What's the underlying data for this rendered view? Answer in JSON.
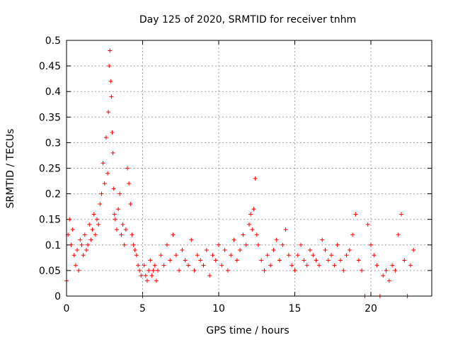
{
  "chart_data": {
    "type": "scatter",
    "title": "Day 125 of 2020, SRMTID for receiver tnhm",
    "xlabel": "GPS time / hours",
    "ylabel": "SRMTID / TECUs",
    "xlim": [
      0,
      24
    ],
    "ylim": [
      0,
      0.5
    ],
    "xticks": [
      0,
      5,
      10,
      15,
      20
    ],
    "xtick_labels": [
      "0",
      "5",
      "10",
      "15",
      "20"
    ],
    "yticks": [
      0,
      0.05,
      0.1,
      0.15,
      0.2,
      0.25,
      0.3,
      0.35,
      0.4,
      0.45,
      0.5
    ],
    "ytick_labels": [
      "0",
      "0.05",
      "0.1",
      "0.15",
      "0.2",
      "0.25",
      "0.3",
      "0.35",
      "0.4",
      "0.45",
      "0.5"
    ],
    "grid": true,
    "marker": "+",
    "color": "#ff0000",
    "series": [
      {
        "name": "SRMTID",
        "x": [
          0.0,
          0.1,
          0.2,
          0.3,
          0.4,
          0.5,
          0.6,
          0.7,
          0.8,
          0.9,
          1.0,
          1.1,
          1.2,
          1.3,
          1.4,
          1.5,
          1.6,
          1.7,
          1.8,
          1.9,
          2.0,
          2.1,
          2.2,
          2.3,
          2.4,
          2.5,
          2.6,
          2.7,
          2.75,
          2.8,
          2.85,
          2.9,
          2.95,
          3.0,
          3.05,
          3.1,
          3.15,
          3.2,
          3.3,
          3.4,
          3.5,
          3.6,
          3.7,
          3.8,
          3.9,
          4.0,
          4.1,
          4.2,
          4.3,
          4.4,
          4.5,
          4.6,
          4.7,
          4.8,
          4.9,
          5.0,
          5.1,
          5.2,
          5.3,
          5.4,
          5.5,
          5.6,
          5.7,
          5.8,
          5.9,
          6.0,
          6.2,
          6.4,
          6.6,
          6.8,
          7.0,
          7.2,
          7.4,
          7.6,
          7.8,
          8.0,
          8.2,
          8.4,
          8.6,
          8.8,
          9.0,
          9.2,
          9.4,
          9.6,
          9.8,
          10.0,
          10.2,
          10.4,
          10.6,
          10.8,
          11.0,
          11.2,
          11.4,
          11.6,
          11.8,
          12.0,
          12.1,
          12.2,
          12.3,
          12.4,
          12.5,
          12.6,
          12.8,
          13.0,
          13.2,
          13.4,
          13.6,
          13.8,
          14.0,
          14.2,
          14.4,
          14.6,
          14.8,
          15.0,
          15.2,
          15.4,
          15.6,
          15.8,
          16.0,
          16.2,
          16.4,
          16.6,
          16.8,
          17.0,
          17.2,
          17.4,
          17.6,
          17.8,
          18.0,
          18.2,
          18.4,
          18.6,
          18.8,
          19.0,
          19.2,
          19.4,
          19.6,
          19.8,
          20.0,
          20.2,
          20.4,
          20.6,
          20.8,
          21.0,
          21.2,
          21.4,
          21.6,
          21.8,
          22.0,
          22.2,
          22.4,
          22.6,
          22.8
        ],
        "y": [
          0.03,
          0.12,
          0.15,
          0.1,
          0.13,
          0.08,
          0.06,
          0.09,
          0.05,
          0.11,
          0.1,
          0.08,
          0.12,
          0.09,
          0.1,
          0.14,
          0.11,
          0.13,
          0.16,
          0.12,
          0.15,
          0.14,
          0.18,
          0.2,
          0.26,
          0.22,
          0.31,
          0.24,
          0.36,
          0.45,
          0.48,
          0.42,
          0.39,
          0.32,
          0.28,
          0.21,
          0.16,
          0.15,
          0.13,
          0.17,
          0.2,
          0.12,
          0.14,
          0.1,
          0.13,
          0.25,
          0.22,
          0.18,
          0.12,
          0.1,
          0.09,
          0.08,
          0.06,
          0.05,
          0.04,
          0.0,
          0.06,
          0.04,
          0.03,
          0.05,
          0.07,
          0.04,
          0.05,
          0.06,
          0.03,
          0.05,
          0.08,
          0.06,
          0.1,
          0.07,
          0.12,
          0.08,
          0.05,
          0.09,
          0.07,
          0.06,
          0.11,
          0.05,
          0.08,
          0.07,
          0.06,
          0.09,
          0.04,
          0.08,
          0.07,
          0.1,
          0.06,
          0.09,
          0.05,
          0.08,
          0.11,
          0.07,
          0.09,
          0.12,
          0.1,
          0.14,
          0.16,
          0.13,
          0.17,
          0.23,
          0.12,
          0.1,
          0.07,
          0.05,
          0.08,
          0.06,
          0.09,
          0.11,
          0.07,
          0.1,
          0.13,
          0.08,
          0.06,
          0.05,
          0.08,
          0.1,
          0.07,
          0.06,
          0.09,
          0.08,
          0.07,
          0.06,
          0.11,
          0.09,
          0.07,
          0.08,
          0.06,
          0.1,
          0.07,
          0.05,
          0.08,
          0.09,
          0.12,
          0.16,
          0.07,
          0.05,
          0.0,
          0.14,
          0.1,
          0.08,
          0.06,
          0.0,
          0.04,
          0.05,
          0.03,
          0.06,
          0.05,
          0.12,
          0.16,
          0.07,
          0.0,
          0.06,
          0.09
        ]
      }
    ]
  }
}
